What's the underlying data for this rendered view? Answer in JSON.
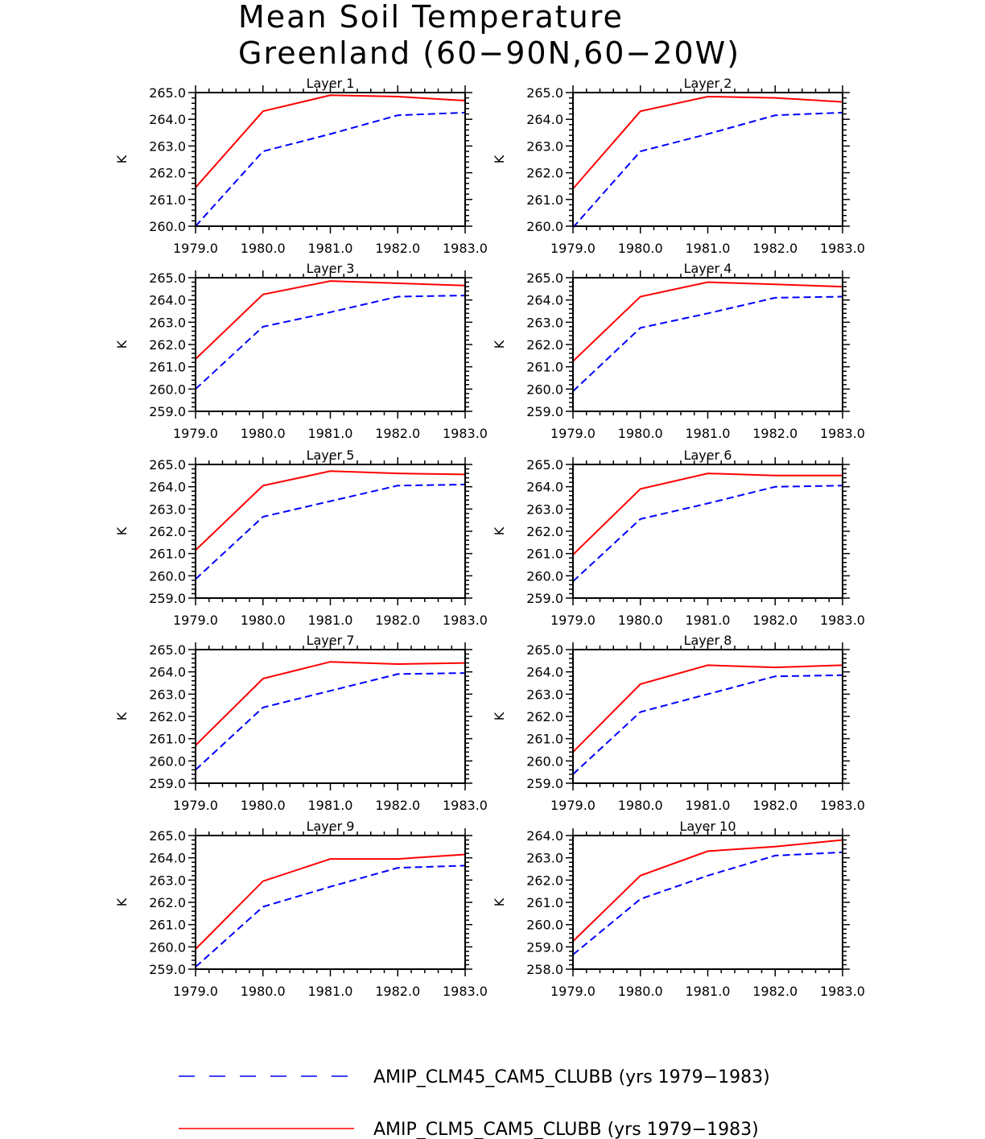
{
  "title": {
    "line1": "Mean Soil Temperature",
    "line2": "Greenland (60−90N,60−20W)"
  },
  "ylabel": "K",
  "xticks": [
    1979,
    1980,
    1981,
    1982,
    1983
  ],
  "xtick_labels": [
    "1979.0",
    "1980.0",
    "1981.0",
    "1982.0",
    "1983.0"
  ],
  "legend": {
    "placement": "bottom-center",
    "items": [
      {
        "label": "AMIP_CLM45_CAM5_CLUBB (yrs 1979−1983)",
        "color": "#0000ff",
        "style": "dashed"
      },
      {
        "label": "AMIP_CLM5_CAM5_CLUBB (yrs 1979−1983)",
        "color": "#ff0000",
        "style": "solid"
      }
    ]
  },
  "chart_data": [
    {
      "type": "line",
      "title": "Layer 1",
      "ylabel": "K",
      "x": [
        1979,
        1980,
        1981,
        1982,
        1983
      ],
      "xlim": [
        1979,
        1983
      ],
      "ylim": [
        260,
        265
      ],
      "yticks": [
        260,
        261,
        262,
        263,
        264,
        265
      ],
      "ytick_labels": [
        "260.0",
        "261.0",
        "262.0",
        "263.0",
        "264.0",
        "265.0"
      ],
      "series": [
        {
          "name": "AMIP_CLM45_CAM5_CLUBB (yrs 1979−1983)",
          "color": "#0000ff",
          "style": "dashed",
          "values": [
            260.0,
            262.8,
            263.45,
            264.15,
            264.25
          ]
        },
        {
          "name": "AMIP_CLM5_CAM5_CLUBB (yrs 1979−1983)",
          "color": "#ff0000",
          "style": "solid",
          "values": [
            261.45,
            264.3,
            264.9,
            264.85,
            264.7
          ]
        }
      ]
    },
    {
      "type": "line",
      "title": "Layer 2",
      "ylabel": "K",
      "x": [
        1979,
        1980,
        1981,
        1982,
        1983
      ],
      "xlim": [
        1979,
        1983
      ],
      "ylim": [
        260,
        265
      ],
      "yticks": [
        260,
        261,
        262,
        263,
        264,
        265
      ],
      "ytick_labels": [
        "260.0",
        "261.0",
        "262.0",
        "263.0",
        "264.0",
        "265.0"
      ],
      "series": [
        {
          "name": "AMIP_CLM45_CAM5_CLUBB (yrs 1979−1983)",
          "color": "#0000ff",
          "style": "dashed",
          "values": [
            259.95,
            262.8,
            263.45,
            264.15,
            264.25
          ]
        },
        {
          "name": "AMIP_CLM5_CAM5_CLUBB (yrs 1979−1983)",
          "color": "#ff0000",
          "style": "solid",
          "values": [
            261.4,
            264.3,
            264.85,
            264.8,
            264.65
          ]
        }
      ]
    },
    {
      "type": "line",
      "title": "Layer 3",
      "ylabel": "K",
      "x": [
        1979,
        1980,
        1981,
        1982,
        1983
      ],
      "xlim": [
        1979,
        1983
      ],
      "ylim": [
        259,
        265
      ],
      "yticks": [
        259,
        260,
        261,
        262,
        263,
        264,
        265
      ],
      "ytick_labels": [
        "259.0",
        "260.0",
        "261.0",
        "262.0",
        "263.0",
        "264.0",
        "265.0"
      ],
      "series": [
        {
          "name": "AMIP_CLM45_CAM5_CLUBB (yrs 1979−1983)",
          "color": "#0000ff",
          "style": "dashed",
          "values": [
            260.0,
            262.8,
            263.45,
            264.15,
            264.2
          ]
        },
        {
          "name": "AMIP_CLM5_CAM5_CLUBB (yrs 1979−1983)",
          "color": "#ff0000",
          "style": "solid",
          "values": [
            261.35,
            264.25,
            264.85,
            264.75,
            264.65
          ]
        }
      ]
    },
    {
      "type": "line",
      "title": "Layer 4",
      "ylabel": "K",
      "x": [
        1979,
        1980,
        1981,
        1982,
        1983
      ],
      "xlim": [
        1979,
        1983
      ],
      "ylim": [
        259,
        265
      ],
      "yticks": [
        259,
        260,
        261,
        262,
        263,
        264,
        265
      ],
      "ytick_labels": [
        "259.0",
        "260.0",
        "261.0",
        "262.0",
        "263.0",
        "264.0",
        "265.0"
      ],
      "series": [
        {
          "name": "AMIP_CLM45_CAM5_CLUBB (yrs 1979−1983)",
          "color": "#0000ff",
          "style": "dashed",
          "values": [
            259.9,
            262.75,
            263.4,
            264.1,
            264.15
          ]
        },
        {
          "name": "AMIP_CLM5_CAM5_CLUBB (yrs 1979−1983)",
          "color": "#ff0000",
          "style": "solid",
          "values": [
            261.25,
            264.15,
            264.8,
            264.7,
            264.6
          ]
        }
      ]
    },
    {
      "type": "line",
      "title": "Layer 5",
      "ylabel": "K",
      "x": [
        1979,
        1980,
        1981,
        1982,
        1983
      ],
      "xlim": [
        1979,
        1983
      ],
      "ylim": [
        259,
        265
      ],
      "yticks": [
        259,
        260,
        261,
        262,
        263,
        264,
        265
      ],
      "ytick_labels": [
        "259.0",
        "260.0",
        "261.0",
        "262.0",
        "263.0",
        "264.0",
        "265.0"
      ],
      "series": [
        {
          "name": "AMIP_CLM45_CAM5_CLUBB (yrs 1979−1983)",
          "color": "#0000ff",
          "style": "dashed",
          "values": [
            259.85,
            262.65,
            263.35,
            264.05,
            264.1
          ]
        },
        {
          "name": "AMIP_CLM5_CAM5_CLUBB (yrs 1979−1983)",
          "color": "#ff0000",
          "style": "solid",
          "values": [
            261.15,
            264.05,
            264.7,
            264.6,
            264.55
          ]
        }
      ]
    },
    {
      "type": "line",
      "title": "Layer 6",
      "ylabel": "K",
      "x": [
        1979,
        1980,
        1981,
        1982,
        1983
      ],
      "xlim": [
        1979,
        1983
      ],
      "ylim": [
        259,
        265
      ],
      "yticks": [
        259,
        260,
        261,
        262,
        263,
        264,
        265
      ],
      "ytick_labels": [
        "259.0",
        "260.0",
        "261.0",
        "262.0",
        "263.0",
        "264.0",
        "265.0"
      ],
      "series": [
        {
          "name": "AMIP_CLM45_CAM5_CLUBB (yrs 1979−1983)",
          "color": "#0000ff",
          "style": "dashed",
          "values": [
            259.75,
            262.55,
            263.25,
            264.0,
            264.05
          ]
        },
        {
          "name": "AMIP_CLM5_CAM5_CLUBB (yrs 1979−1983)",
          "color": "#ff0000",
          "style": "solid",
          "values": [
            260.95,
            263.9,
            264.6,
            264.5,
            264.5
          ]
        }
      ]
    },
    {
      "type": "line",
      "title": "Layer 7",
      "ylabel": "K",
      "x": [
        1979,
        1980,
        1981,
        1982,
        1983
      ],
      "xlim": [
        1979,
        1983
      ],
      "ylim": [
        259,
        265
      ],
      "yticks": [
        259,
        260,
        261,
        262,
        263,
        264,
        265
      ],
      "ytick_labels": [
        "259.0",
        "260.0",
        "261.0",
        "262.0",
        "263.0",
        "264.0",
        "265.0"
      ],
      "series": [
        {
          "name": "AMIP_CLM45_CAM5_CLUBB (yrs 1979−1983)",
          "color": "#0000ff",
          "style": "dashed",
          "values": [
            259.6,
            262.4,
            263.15,
            263.9,
            263.95
          ]
        },
        {
          "name": "AMIP_CLM5_CAM5_CLUBB (yrs 1979−1983)",
          "color": "#ff0000",
          "style": "solid",
          "values": [
            260.7,
            263.7,
            264.45,
            264.35,
            264.4
          ]
        }
      ]
    },
    {
      "type": "line",
      "title": "Layer 8",
      "ylabel": "K",
      "x": [
        1979,
        1980,
        1981,
        1982,
        1983
      ],
      "xlim": [
        1979,
        1983
      ],
      "ylim": [
        259,
        265
      ],
      "yticks": [
        259,
        260,
        261,
        262,
        263,
        264,
        265
      ],
      "ytick_labels": [
        "259.0",
        "260.0",
        "261.0",
        "262.0",
        "263.0",
        "264.0",
        "265.0"
      ],
      "series": [
        {
          "name": "AMIP_CLM45_CAM5_CLUBB (yrs 1979−1983)",
          "color": "#0000ff",
          "style": "dashed",
          "values": [
            259.4,
            262.2,
            263.0,
            263.8,
            263.85
          ]
        },
        {
          "name": "AMIP_CLM5_CAM5_CLUBB (yrs 1979−1983)",
          "color": "#ff0000",
          "style": "solid",
          "values": [
            260.4,
            263.45,
            264.3,
            264.2,
            264.3
          ]
        }
      ]
    },
    {
      "type": "line",
      "title": "Layer 9",
      "ylabel": "K",
      "x": [
        1979,
        1980,
        1981,
        1982,
        1983
      ],
      "xlim": [
        1979,
        1983
      ],
      "ylim": [
        259,
        265
      ],
      "yticks": [
        259,
        260,
        261,
        262,
        263,
        264,
        265
      ],
      "ytick_labels": [
        "259.0",
        "260.0",
        "261.0",
        "262.0",
        "263.0",
        "264.0",
        "265.0"
      ],
      "series": [
        {
          "name": "AMIP_CLM45_CAM5_CLUBB (yrs 1979−1983)",
          "color": "#0000ff",
          "style": "dashed",
          "values": [
            259.1,
            261.8,
            262.7,
            263.55,
            263.65
          ]
        },
        {
          "name": "AMIP_CLM5_CAM5_CLUBB (yrs 1979−1983)",
          "color": "#ff0000",
          "style": "solid",
          "values": [
            259.9,
            262.95,
            263.95,
            263.95,
            264.15
          ]
        }
      ]
    },
    {
      "type": "line",
      "title": "Layer 10",
      "ylabel": "K",
      "x": [
        1979,
        1980,
        1981,
        1982,
        1983
      ],
      "xlim": [
        1979,
        1983
      ],
      "ylim": [
        258,
        264
      ],
      "yticks": [
        258,
        259,
        260,
        261,
        262,
        263,
        264
      ],
      "ytick_labels": [
        "258.0",
        "259.0",
        "260.0",
        "261.0",
        "262.0",
        "263.0",
        "264.0"
      ],
      "series": [
        {
          "name": "AMIP_CLM45_CAM5_CLUBB (yrs 1979−1983)",
          "color": "#0000ff",
          "style": "dashed",
          "values": [
            258.65,
            261.15,
            262.2,
            263.1,
            263.25
          ]
        },
        {
          "name": "AMIP_CLM5_CAM5_CLUBB (yrs 1979−1983)",
          "color": "#ff0000",
          "style": "solid",
          "values": [
            259.25,
            262.2,
            263.3,
            263.5,
            263.8
          ]
        }
      ]
    }
  ]
}
